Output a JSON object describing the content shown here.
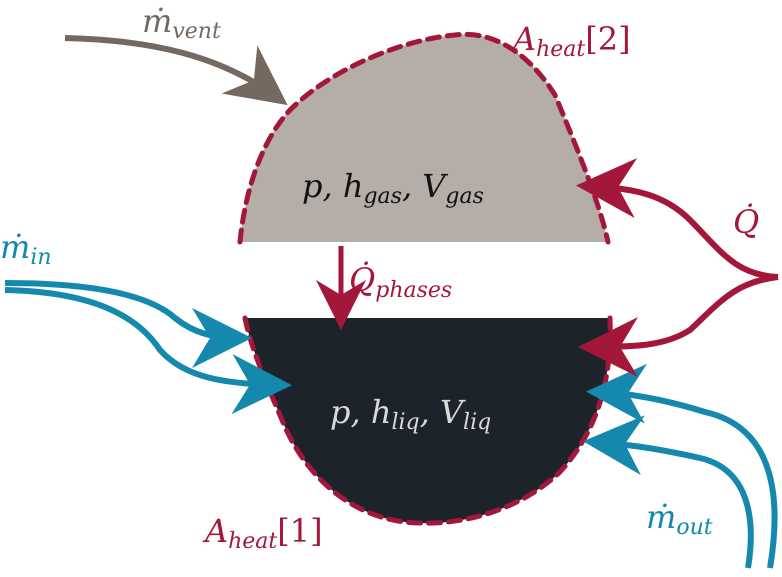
{
  "colors": {
    "gas_fill": "#b5ada7",
    "liquid_fill": "#1d232a",
    "heat": "#a3173a",
    "inlet": "#1588ad",
    "vent": "#756861",
    "light_text": "#d9d9d9",
    "dark_text": "#111111"
  },
  "labels": {
    "m_vent": {
      "base": "ṁ",
      "sub": "vent"
    },
    "a_heat_2": {
      "base": "A",
      "sub": "heat",
      "index": "[2]"
    },
    "gas_state": {
      "p": "p,",
      "h": "h",
      "h_sub": "gas",
      "comma": ",",
      "v": "V",
      "v_sub": "gas"
    },
    "q_dot": {
      "base": "Q̇"
    },
    "q_phases": {
      "base": "Q̇",
      "sub": "phases"
    },
    "m_in": {
      "base": "ṁ",
      "sub": "in"
    },
    "liquid_state": {
      "p": "p,",
      "h": "h",
      "h_sub": "liq",
      "comma": ",",
      "v": "V",
      "v_sub": "liq"
    },
    "m_out": {
      "base": "ṁ",
      "sub": "out"
    },
    "a_heat_1": {
      "base": "A",
      "sub": "heat",
      "index": "[1]"
    }
  }
}
